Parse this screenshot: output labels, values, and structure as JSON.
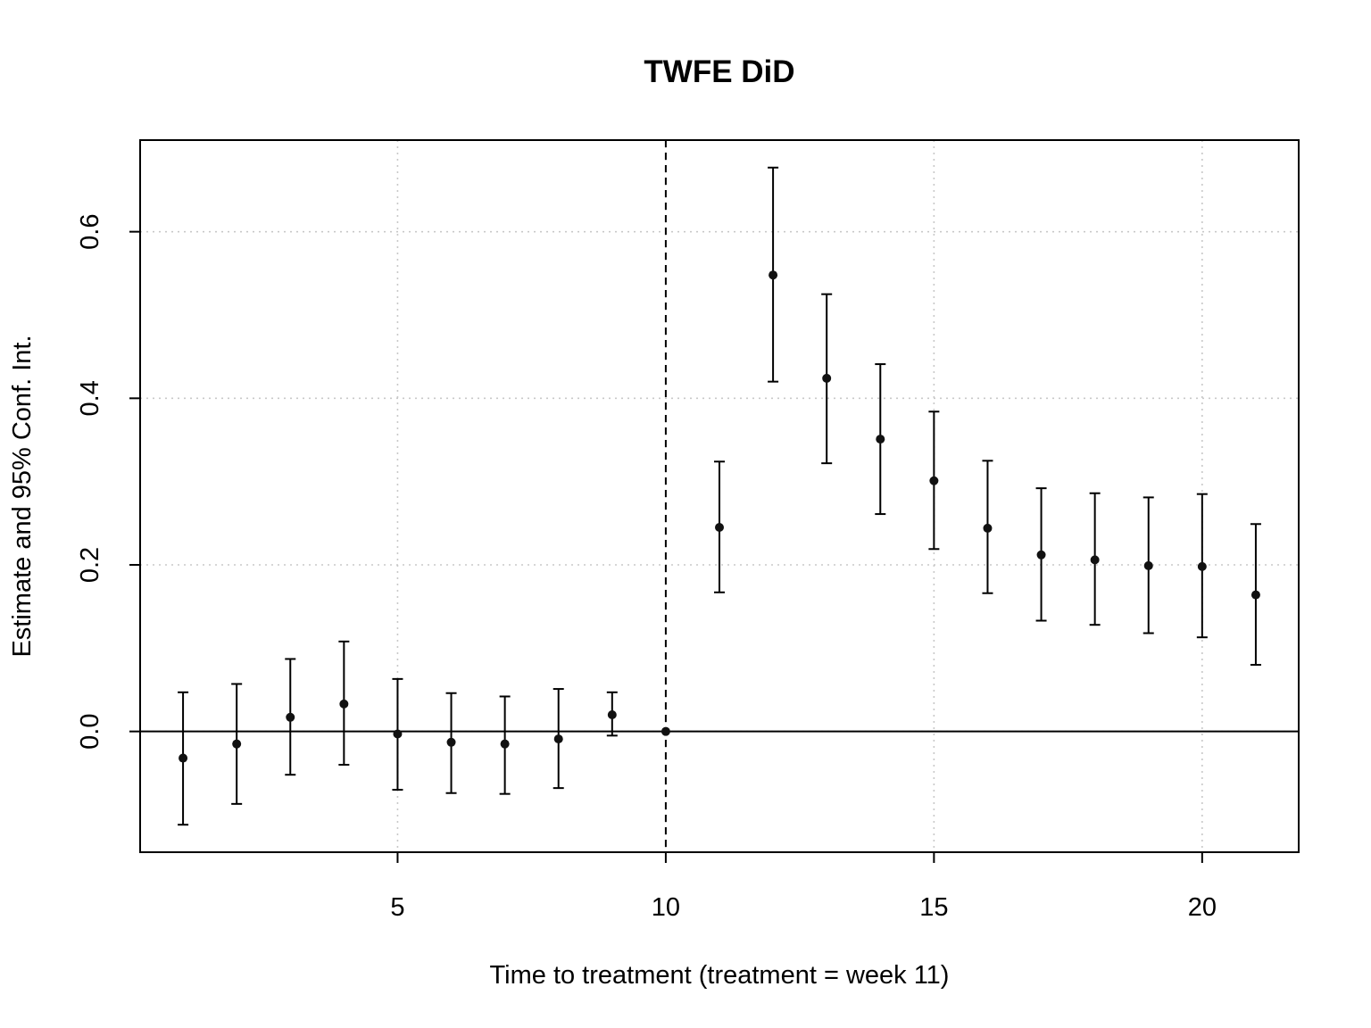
{
  "chart_data": {
    "type": "scatter",
    "title": "TWFE DiD",
    "xlabel": "Time to treatment (treatment = week 11)",
    "ylabel": "Estimate and 95% Conf. Int.",
    "xlim": [
      0.2,
      21.8
    ],
    "ylim": [
      -0.145,
      0.71
    ],
    "x_ticks": [
      5,
      10,
      15,
      20
    ],
    "x_tick_labels": [
      "5",
      "10",
      "15",
      "20"
    ],
    "y_ticks": [
      0.0,
      0.2,
      0.4,
      0.6
    ],
    "y_tick_labels": [
      "0.0",
      "0.2",
      "0.4",
      "0.6"
    ],
    "grid": true,
    "reference_hline": 0,
    "reference_vline": 10,
    "x": [
      1,
      2,
      3,
      4,
      5,
      6,
      7,
      8,
      9,
      10,
      11,
      12,
      13,
      14,
      15,
      16,
      17,
      18,
      19,
      20,
      21
    ],
    "estimate": [
      -0.032,
      -0.015,
      0.017,
      0.033,
      -0.003,
      -0.013,
      -0.015,
      -0.009,
      0.02,
      0.0,
      0.245,
      0.548,
      0.424,
      0.351,
      0.301,
      0.244,
      0.212,
      0.206,
      0.199,
      0.198,
      0.164
    ],
    "ci_lower": [
      -0.112,
      -0.087,
      -0.052,
      -0.04,
      -0.07,
      -0.074,
      -0.075,
      -0.068,
      -0.005,
      0.0,
      0.167,
      0.42,
      0.322,
      0.261,
      0.219,
      0.166,
      0.133,
      0.128,
      0.118,
      0.113,
      0.08
    ],
    "ci_upper": [
      0.047,
      0.057,
      0.087,
      0.108,
      0.063,
      0.046,
      0.042,
      0.051,
      0.047,
      0.0,
      0.324,
      0.677,
      0.525,
      0.441,
      0.384,
      0.325,
      0.292,
      0.286,
      0.281,
      0.285,
      0.249
    ]
  }
}
